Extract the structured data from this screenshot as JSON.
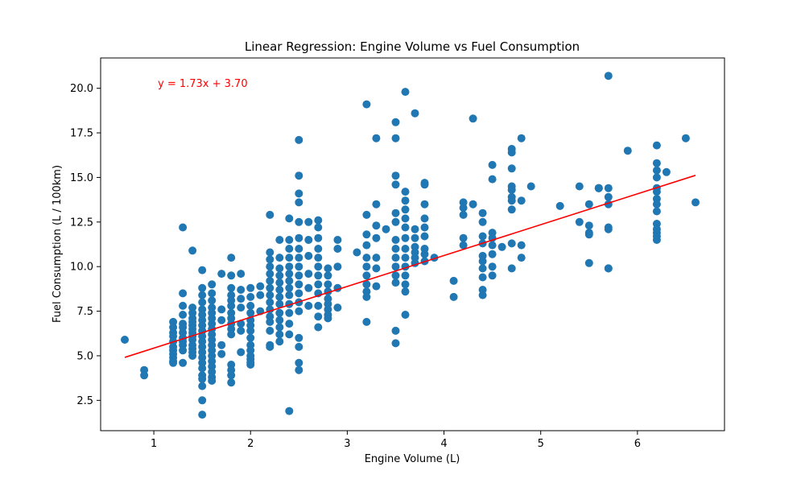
{
  "chart_data": {
    "type": "scatter",
    "title": "Linear Regression: Engine Volume vs Fuel Consumption",
    "xlabel": "Engine Volume (L)",
    "ylabel": "Fuel Consumption (L / 100km)",
    "xlim": [
      0.45,
      6.9
    ],
    "ylim": [
      0.8,
      21.7
    ],
    "xticks": [
      1,
      2,
      3,
      4,
      5,
      6
    ],
    "yticks": [
      2.5,
      5.0,
      7.5,
      10.0,
      12.5,
      15.0,
      17.5,
      20.0
    ],
    "xtick_labels": [
      "1",
      "2",
      "3",
      "4",
      "5",
      "6"
    ],
    "ytick_labels": [
      "2.5",
      "5.0",
      "7.5",
      "10.0",
      "12.5",
      "15.0",
      "17.5",
      "20.0"
    ],
    "grid": false,
    "colors": {
      "points": "#1f77b4",
      "regression": "#ff0000"
    },
    "regression": {
      "slope": 1.73,
      "intercept": 3.7,
      "x_range": [
        0.7,
        6.6
      ],
      "equation_label": "y = 1.73x + 3.70"
    },
    "series": [
      {
        "type": "scatter",
        "x": [
          0.7,
          0.9,
          0.9,
          1.2,
          1.2,
          1.2,
          1.2,
          1.2,
          1.2,
          1.2,
          1.2,
          1.2,
          1.2,
          1.2,
          1.3,
          1.3,
          1.3,
          1.3,
          1.3,
          1.3,
          1.3,
          1.3,
          1.3,
          1.3,
          1.3,
          1.3,
          1.4,
          1.4,
          1.4,
          1.4,
          1.4,
          1.4,
          1.4,
          1.4,
          1.4,
          1.4,
          1.4,
          1.4,
          1.4,
          1.4,
          1.5,
          1.5,
          1.5,
          1.5,
          1.5,
          1.5,
          1.5,
          1.5,
          1.5,
          1.5,
          1.5,
          1.5,
          1.5,
          1.5,
          1.5,
          1.5,
          1.5,
          1.5,
          1.5,
          1.5,
          1.5,
          1.6,
          1.6,
          1.6,
          1.6,
          1.6,
          1.6,
          1.6,
          1.6,
          1.6,
          1.6,
          1.6,
          1.6,
          1.6,
          1.6,
          1.6,
          1.6,
          1.6,
          1.6,
          1.7,
          1.7,
          1.7,
          1.7,
          1.7,
          1.8,
          1.8,
          1.8,
          1.8,
          1.8,
          1.8,
          1.8,
          1.8,
          1.8,
          1.8,
          1.8,
          1.8,
          1.8,
          1.8,
          1.8,
          1.9,
          1.9,
          1.9,
          1.9,
          1.9,
          1.9,
          1.9,
          2.0,
          2.0,
          2.0,
          2.0,
          2.0,
          2.0,
          2.0,
          2.0,
          2.0,
          2.0,
          2.0,
          2.0,
          2.0,
          2.0,
          2.1,
          2.1,
          2.1,
          2.2,
          2.2,
          2.2,
          2.2,
          2.2,
          2.2,
          2.2,
          2.2,
          2.2,
          2.2,
          2.2,
          2.2,
          2.2,
          2.2,
          2.2,
          2.3,
          2.3,
          2.3,
          2.3,
          2.3,
          2.3,
          2.3,
          2.3,
          2.3,
          2.3,
          2.3,
          2.3,
          2.3,
          2.4,
          2.4,
          2.4,
          2.4,
          2.4,
          2.4,
          2.4,
          2.4,
          2.4,
          2.4,
          2.4,
          2.4,
          2.4,
          2.4,
          2.5,
          2.5,
          2.5,
          2.5,
          2.5,
          2.5,
          2.5,
          2.5,
          2.5,
          2.5,
          2.5,
          2.5,
          2.5,
          2.5,
          2.5,
          2.5,
          2.5,
          2.5,
          2.6,
          2.6,
          2.6,
          2.6,
          2.6,
          2.6,
          2.7,
          2.7,
          2.7,
          2.7,
          2.7,
          2.7,
          2.7,
          2.7,
          2.7,
          2.7,
          2.7,
          2.7,
          2.8,
          2.8,
          2.8,
          2.8,
          2.8,
          2.8,
          2.8,
          2.8,
          2.8,
          2.9,
          2.9,
          2.9,
          2.9,
          2.9,
          3.1,
          3.2,
          3.2,
          3.2,
          3.2,
          3.2,
          3.2,
          3.2,
          3.2,
          3.2,
          3.2,
          3.2,
          3.3,
          3.3,
          3.3,
          3.3,
          3.3,
          3.3,
          3.3,
          3.4,
          3.5,
          3.5,
          3.5,
          3.5,
          3.5,
          3.5,
          3.5,
          3.5,
          3.5,
          3.5,
          3.5,
          3.5,
          3.5,
          3.5,
          3.6,
          3.6,
          3.6,
          3.6,
          3.6,
          3.6,
          3.6,
          3.6,
          3.6,
          3.6,
          3.6,
          3.6,
          3.6,
          3.6,
          3.7,
          3.7,
          3.7,
          3.7,
          3.7,
          3.7,
          3.7,
          3.8,
          3.8,
          3.8,
          3.8,
          3.8,
          3.8,
          3.8,
          3.8,
          3.8,
          3.9,
          4.1,
          4.1,
          4.2,
          4.2,
          4.2,
          4.2,
          4.2,
          4.3,
          4.3,
          4.4,
          4.4,
          4.4,
          4.4,
          4.4,
          4.4,
          4.4,
          4.4,
          4.4,
          4.4,
          4.5,
          4.5,
          4.5,
          4.5,
          4.5,
          4.5,
          4.5,
          4.5,
          4.6,
          4.7,
          4.7,
          4.7,
          4.7,
          4.7,
          4.7,
          4.7,
          4.7,
          4.7,
          4.7,
          4.8,
          4.8,
          4.8,
          4.8,
          4.9,
          5.2,
          5.4,
          5.4,
          5.5,
          5.5,
          5.5,
          5.5,
          5.5,
          5.6,
          5.6,
          5.6,
          5.7,
          5.7,
          5.7,
          5.7,
          5.7,
          5.7,
          5.7,
          5.7,
          5.9,
          6.2,
          6.2,
          6.2,
          6.2,
          6.2,
          6.2,
          6.2,
          6.2,
          6.2,
          6.2,
          6.2,
          6.2,
          6.2,
          6.2,
          6.3,
          6.5,
          6.6
        ],
        "y": [
          5.9,
          4.2,
          3.9,
          6.9,
          6.6,
          6.3,
          6.1,
          5.8,
          5.5,
          5.3,
          5.1,
          4.9,
          4.7,
          4.6,
          12.2,
          8.5,
          7.8,
          7.3,
          6.8,
          6.6,
          6.3,
          6.0,
          5.8,
          5.6,
          5.3,
          4.6,
          10.9,
          7.7,
          7.4,
          7.1,
          6.9,
          6.7,
          6.5,
          6.3,
          6.1,
          5.9,
          5.6,
          5.4,
          5.2,
          5.0,
          9.8,
          8.8,
          8.4,
          8.0,
          7.6,
          7.3,
          7.0,
          6.7,
          6.4,
          6.1,
          5.8,
          5.5,
          5.2,
          4.9,
          4.6,
          4.3,
          3.9,
          3.7,
          3.3,
          2.5,
          1.7,
          9.0,
          8.5,
          8.1,
          7.7,
          7.4,
          7.1,
          6.8,
          6.5,
          6.2,
          5.9,
          5.6,
          5.3,
          5.0,
          4.7,
          4.4,
          4.1,
          3.8,
          3.6,
          9.6,
          7.6,
          7.0,
          5.6,
          5.1,
          10.5,
          9.5,
          8.8,
          8.4,
          8.1,
          7.8,
          7.4,
          7.1,
          6.8,
          6.5,
          6.2,
          4.5,
          4.2,
          3.9,
          3.5,
          9.6,
          8.7,
          8.2,
          7.7,
          6.8,
          6.4,
          5.2,
          8.8,
          8.3,
          7.8,
          7.4,
          7.0,
          6.7,
          6.4,
          6.0,
          5.6,
          5.3,
          5.0,
          4.8,
          4.6,
          4.5,
          8.9,
          8.4,
          7.5,
          12.9,
          10.8,
          10.4,
          10.0,
          9.6,
          9.2,
          8.8,
          8.4,
          8.0,
          7.6,
          7.2,
          6.9,
          6.4,
          5.6,
          5.5,
          11.5,
          10.5,
          9.9,
          9.5,
          9.1,
          8.7,
          8.3,
          7.9,
          7.4,
          7.0,
          6.6,
          6.2,
          5.8,
          12.7,
          11.5,
          11.0,
          10.5,
          10.0,
          9.6,
          9.2,
          8.8,
          8.4,
          7.9,
          7.4,
          6.8,
          6.2,
          1.9,
          17.1,
          15.1,
          14.1,
          13.6,
          12.5,
          11.6,
          11.0,
          10.5,
          10.0,
          9.5,
          9.0,
          8.5,
          8.0,
          7.5,
          6.0,
          5.5,
          4.6,
          4.2,
          12.5,
          11.5,
          10.6,
          9.6,
          8.8,
          7.8,
          12.6,
          12.2,
          11.6,
          11.0,
          10.5,
          10.0,
          9.5,
          9.0,
          8.5,
          7.8,
          7.2,
          6.6,
          9.9,
          9.5,
          9.0,
          8.6,
          8.2,
          7.9,
          7.6,
          7.3,
          7.1,
          11.5,
          11.0,
          10.0,
          8.8,
          7.7,
          10.8,
          19.1,
          12.9,
          11.8,
          11.2,
          10.5,
          10.0,
          9.5,
          9.0,
          8.6,
          8.3,
          6.9,
          17.2,
          13.5,
          12.3,
          11.6,
          10.5,
          9.9,
          8.9,
          12.1,
          18.1,
          17.2,
          15.1,
          14.6,
          13.0,
          12.5,
          11.5,
          11.0,
          10.5,
          10.0,
          9.5,
          9.1,
          6.4,
          5.7,
          19.8,
          14.2,
          13.7,
          13.2,
          12.7,
          12.2,
          11.6,
          11.0,
          10.5,
          10.0,
          9.5,
          9.0,
          8.6,
          7.3,
          18.6,
          12.1,
          11.6,
          11.1,
          10.8,
          10.5,
          10.2,
          14.7,
          14.6,
          13.5,
          12.7,
          12.2,
          11.7,
          11.0,
          10.7,
          10.3,
          10.5,
          9.2,
          8.3,
          13.6,
          13.3,
          12.9,
          11.6,
          11.2,
          18.3,
          13.5,
          13.0,
          12.5,
          11.7,
          11.3,
          10.6,
          10.3,
          9.9,
          9.4,
          8.7,
          8.4,
          15.7,
          14.9,
          11.9,
          11.6,
          11.2,
          10.7,
          10.0,
          9.5,
          11.1,
          16.6,
          16.4,
          15.5,
          14.5,
          14.3,
          13.9,
          13.7,
          13.2,
          11.3,
          9.9,
          17.2,
          13.7,
          11.2,
          10.5,
          14.5,
          13.4,
          14.5,
          12.5,
          13.5,
          12.3,
          11.9,
          11.8,
          10.2,
          14.4,
          14.4,
          14.4,
          20.7,
          14.4,
          13.9,
          13.5,
          12.2,
          12.1,
          9.9,
          9.9,
          16.5,
          16.8,
          15.8,
          15.4,
          15.0,
          14.4,
          14.2,
          13.8,
          13.5,
          13.1,
          12.4,
          12.1,
          11.9,
          11.7,
          11.5,
          15.3,
          17.2,
          13.6
        ]
      }
    ]
  }
}
